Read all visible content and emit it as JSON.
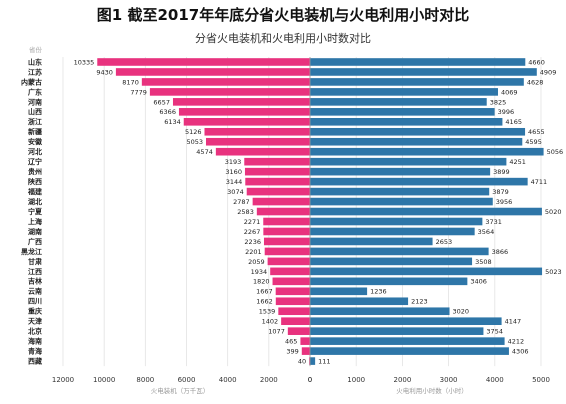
{
  "figure_title": "图1 截至2017年年底分省火电装机与火电利用小时对比",
  "chart_data": {
    "type": "bar",
    "title": "分省火电装机和火电利用小时数对比",
    "category_header": "省份",
    "categories": [
      "山东",
      "江苏",
      "内蒙古",
      "广东",
      "河南",
      "山西",
      "浙江",
      "新疆",
      "安徽",
      "河北",
      "辽宁",
      "贵州",
      "陕西",
      "福建",
      "湖北",
      "宁夏",
      "上海",
      "湖南",
      "广西",
      "黑龙江",
      "甘肃",
      "江西",
      "吉林",
      "云南",
      "四川",
      "重庆",
      "天津",
      "北京",
      "海南",
      "青海",
      "西藏"
    ],
    "series": [
      {
        "name": "火电装机（万千瓦）",
        "color": "#e8327e",
        "values": [
          10335,
          9430,
          8170,
          7779,
          6657,
          6366,
          6134,
          5126,
          5053,
          4574,
          3193,
          3160,
          3144,
          3074,
          2787,
          2583,
          2271,
          2267,
          2236,
          2201,
          2059,
          1934,
          1820,
          1667,
          1662,
          1539,
          1402,
          1077,
          465,
          399,
          40
        ]
      },
      {
        "name": "火电利用小时数（小时）",
        "color": "#2e76a8",
        "values": [
          4660,
          4909,
          4628,
          4069,
          3825,
          3996,
          4165,
          4655,
          4595,
          5056,
          4251,
          3899,
          4711,
          3879,
          3956,
          5020,
          3731,
          3564,
          2653,
          3866,
          3508,
          5023,
          3406,
          1236,
          2123,
          3020,
          4147,
          3754,
          4212,
          4306,
          111
        ]
      }
    ],
    "left_axis": {
      "label": "火电装机（万千瓦）",
      "range": [
        0,
        12000
      ],
      "ticks": [
        12000,
        10000,
        8000,
        6000,
        4000,
        2000,
        0
      ],
      "direction": "reversed"
    },
    "right_axis": {
      "label": "火电利用小时数（小时）",
      "range": [
        0,
        5000
      ],
      "ticks": [
        0,
        1000,
        2000,
        3000,
        4000,
        5000
      ]
    }
  }
}
